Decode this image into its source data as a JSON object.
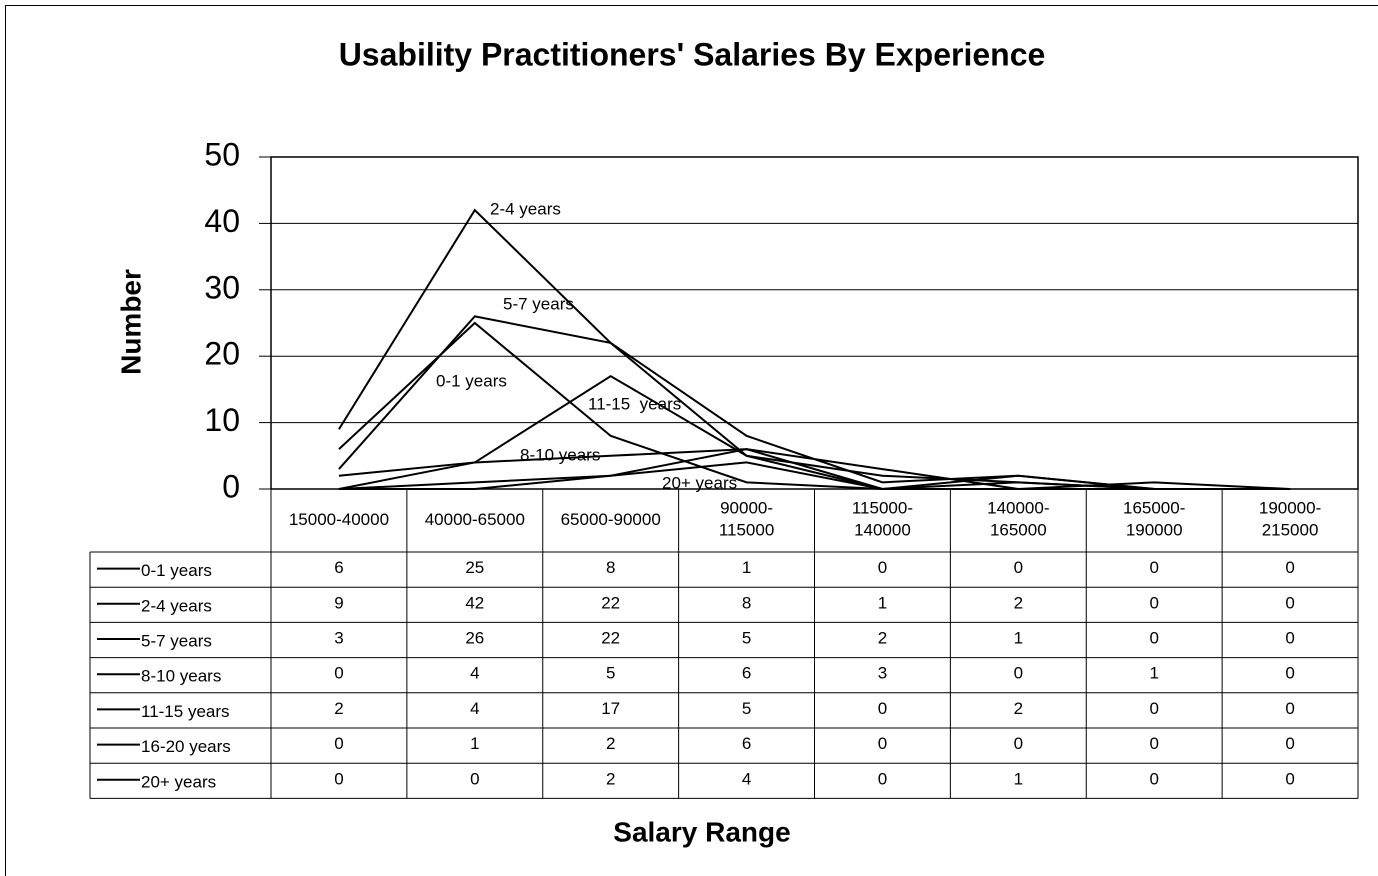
{
  "chart_data": {
    "type": "line",
    "title": "Usability Practitioners' Salaries By Experience",
    "y_label": "Number",
    "x_label": "Salary Range",
    "categories": [
      "15000-40000",
      "40000-65000",
      "65000-90000",
      "90000-115000",
      "115000-140000",
      "140000-165000",
      "165000-190000",
      "190000-215000"
    ],
    "series": [
      {
        "name": "0-1 years",
        "color": "#000000",
        "values": [
          6,
          25,
          8,
          1,
          0,
          0,
          0,
          0
        ]
      },
      {
        "name": "2-4 years",
        "color": "#000000",
        "values": [
          9,
          42,
          22,
          8,
          1,
          2,
          0,
          0
        ]
      },
      {
        "name": "5-7 years",
        "color": "#000000",
        "values": [
          3,
          26,
          22,
          5,
          2,
          1,
          0,
          0
        ]
      },
      {
        "name": "8-10 years",
        "color": "#000000",
        "values": [
          0,
          4,
          5,
          6,
          3,
          0,
          1,
          0
        ]
      },
      {
        "name": "11-15 years",
        "color": "#000000",
        "values": [
          2,
          4,
          17,
          5,
          0,
          2,
          0,
          0
        ]
      },
      {
        "name": "16-20 years",
        "color": "#000000",
        "values": [
          0,
          1,
          2,
          6,
          0,
          0,
          0,
          0
        ]
      },
      {
        "name": "20+ years",
        "color": "#000000",
        "values": [
          0,
          0,
          2,
          4,
          0,
          1,
          0,
          0
        ]
      }
    ],
    "annotations": [
      "2-4 years",
      "5-7 years",
      "0-1 years",
      "11-15  years",
      "8-10 years",
      "20+ years"
    ],
    "ylim": [
      0,
      50
    ],
    "yticks": [
      0,
      10,
      20,
      30,
      40,
      50
    ],
    "grid": true
  }
}
